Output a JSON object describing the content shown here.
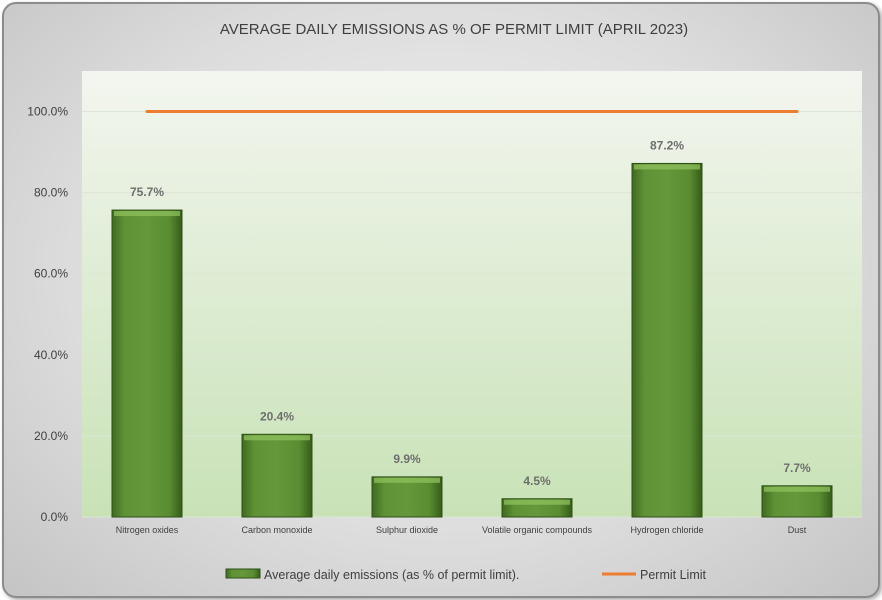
{
  "chart_data": {
    "type": "bar",
    "title": "AVERAGE DAILY EMISSIONS AS % OF PERMIT LIMIT (APRIL 2023)",
    "categories": [
      "Nitrogen oxides",
      "Carbon monoxide",
      "Sulphur dioxide",
      "Volatile organic compounds",
      "Hydrogen chloride",
      "Dust"
    ],
    "series": [
      {
        "name": "Average daily emissions (as % of permit limit).",
        "type": "bar",
        "values": [
          75.7,
          20.4,
          9.9,
          4.5,
          87.2,
          7.7
        ],
        "data_labels": [
          "75.7%",
          "20.4%",
          "9.9%",
          "4.5%",
          "87.2%",
          "7.7%"
        ],
        "color": "#5b8a32"
      },
      {
        "name": "Permit Limit",
        "type": "line",
        "values": [
          100,
          100,
          100,
          100,
          100,
          100
        ],
        "color": "#ed7d31"
      }
    ],
    "ylim": [
      0,
      110
    ],
    "yticks": [
      0,
      20,
      40,
      60,
      80,
      100
    ],
    "ytick_labels": [
      "0.0%",
      "20.0%",
      "40.0%",
      "60.0%",
      "80.0%",
      "100.0%"
    ],
    "xlabel": "",
    "ylabel": "",
    "grid": true,
    "legend_position": "bottom"
  }
}
